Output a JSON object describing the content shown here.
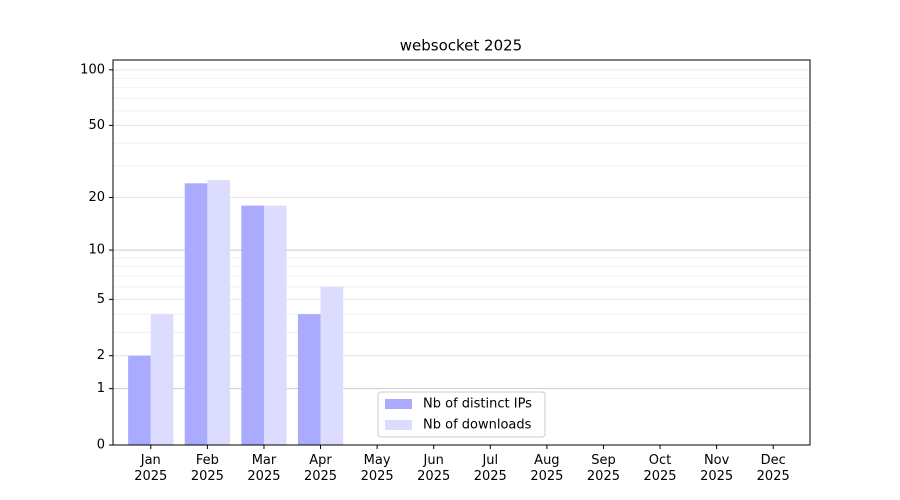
{
  "chart_data": {
    "type": "bar",
    "title": "websocket 2025",
    "categories": [
      "Jan\n2025",
      "Feb\n2025",
      "Mar\n2025",
      "Apr\n2025",
      "May\n2025",
      "Jun\n2025",
      "Jul\n2025",
      "Aug\n2025",
      "Sep\n2025",
      "Oct\n2025",
      "Nov\n2025",
      "Dec\n2025"
    ],
    "series": [
      {
        "name": "Nb of distinct IPs",
        "color": "#aaaaff",
        "values": [
          2,
          24,
          18,
          4,
          0,
          0,
          0,
          0,
          0,
          0,
          0,
          0
        ]
      },
      {
        "name": "Nb of downloads",
        "color": "#dcdcff",
        "values": [
          4,
          25,
          18,
          6,
          0,
          0,
          0,
          0,
          0,
          0,
          0,
          0
        ]
      }
    ],
    "yscale": "log1p",
    "ylim": [
      0,
      113
    ],
    "yticks": [
      0,
      1,
      2,
      5,
      10,
      20,
      50,
      100
    ],
    "yticks_minor": [
      3,
      4,
      6,
      7,
      8,
      9,
      30,
      40,
      60,
      70,
      80,
      90
    ],
    "grid": true,
    "legend": "lower center"
  }
}
